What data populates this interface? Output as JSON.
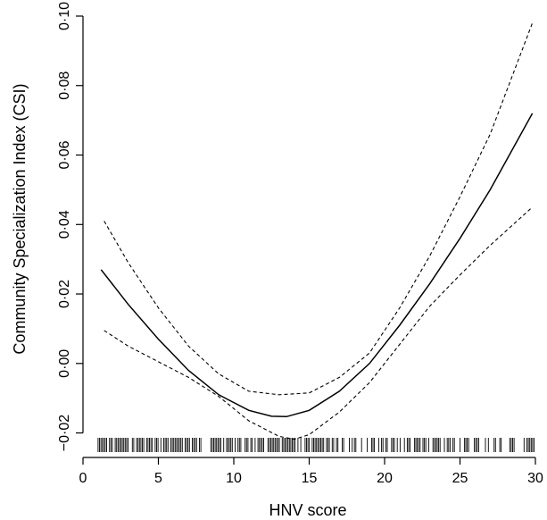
{
  "chart_data": {
    "type": "line",
    "xlabel": "HNV score",
    "ylabel": "Community Specialization Index (CSI)",
    "xlim": [
      0,
      30
    ],
    "ylim": [
      -0.025,
      0.1
    ],
    "x_ticks": [
      0,
      5,
      10,
      15,
      20,
      25,
      30
    ],
    "x_tick_labels": [
      "0",
      "5",
      "10",
      "15",
      "20",
      "25",
      "30"
    ],
    "y_ticks": [
      -0.02,
      0.0,
      0.02,
      0.04,
      0.06,
      0.08,
      0.1
    ],
    "y_tick_labels": [
      "−0·02",
      "0·00",
      "0·02",
      "0·04",
      "0·06",
      "0·08",
      "0·10"
    ],
    "grid": false,
    "legend": "none",
    "series": [
      {
        "role": "fit",
        "line_style": "solid",
        "x": [
          1.2,
          3,
          5,
          7,
          9,
          11,
          12.5,
          13.5,
          15,
          17,
          19,
          21,
          23,
          25,
          27,
          29.8
        ],
        "y": [
          0.027,
          0.017,
          0.007,
          -0.002,
          -0.009,
          -0.0135,
          -0.0152,
          -0.0153,
          -0.0135,
          -0.008,
          0.0,
          0.011,
          0.023,
          0.036,
          0.05,
          0.072
        ]
      },
      {
        "role": "upper_ci",
        "line_style": "dashed",
        "x": [
          1.4,
          3,
          5,
          7,
          9,
          11,
          13,
          15,
          17,
          19,
          21,
          23,
          25,
          27,
          29.8
        ],
        "y": [
          0.041,
          0.029,
          0.016,
          0.005,
          -0.003,
          -0.008,
          -0.009,
          -0.0085,
          -0.004,
          0.003,
          0.016,
          0.031,
          0.048,
          0.066,
          0.098
        ]
      },
      {
        "role": "lower_ci",
        "line_style": "dashed",
        "x": [
          1.4,
          3,
          5,
          7,
          9,
          11,
          13,
          14,
          15,
          17,
          19,
          21,
          23,
          25,
          27,
          29.8
        ],
        "y": [
          0.0095,
          0.005,
          0.0005,
          -0.004,
          -0.0095,
          -0.0165,
          -0.021,
          -0.0218,
          -0.0205,
          -0.014,
          -0.0055,
          0.0055,
          0.0165,
          0.0255,
          0.034,
          0.045
        ]
      }
    ],
    "rug": {
      "ranges": [
        [
          1,
          18
        ],
        [
          18,
          26.5
        ],
        [
          26.5,
          30
        ]
      ],
      "densities": [
        0.7,
        0.5,
        0.4
      ]
    }
  }
}
